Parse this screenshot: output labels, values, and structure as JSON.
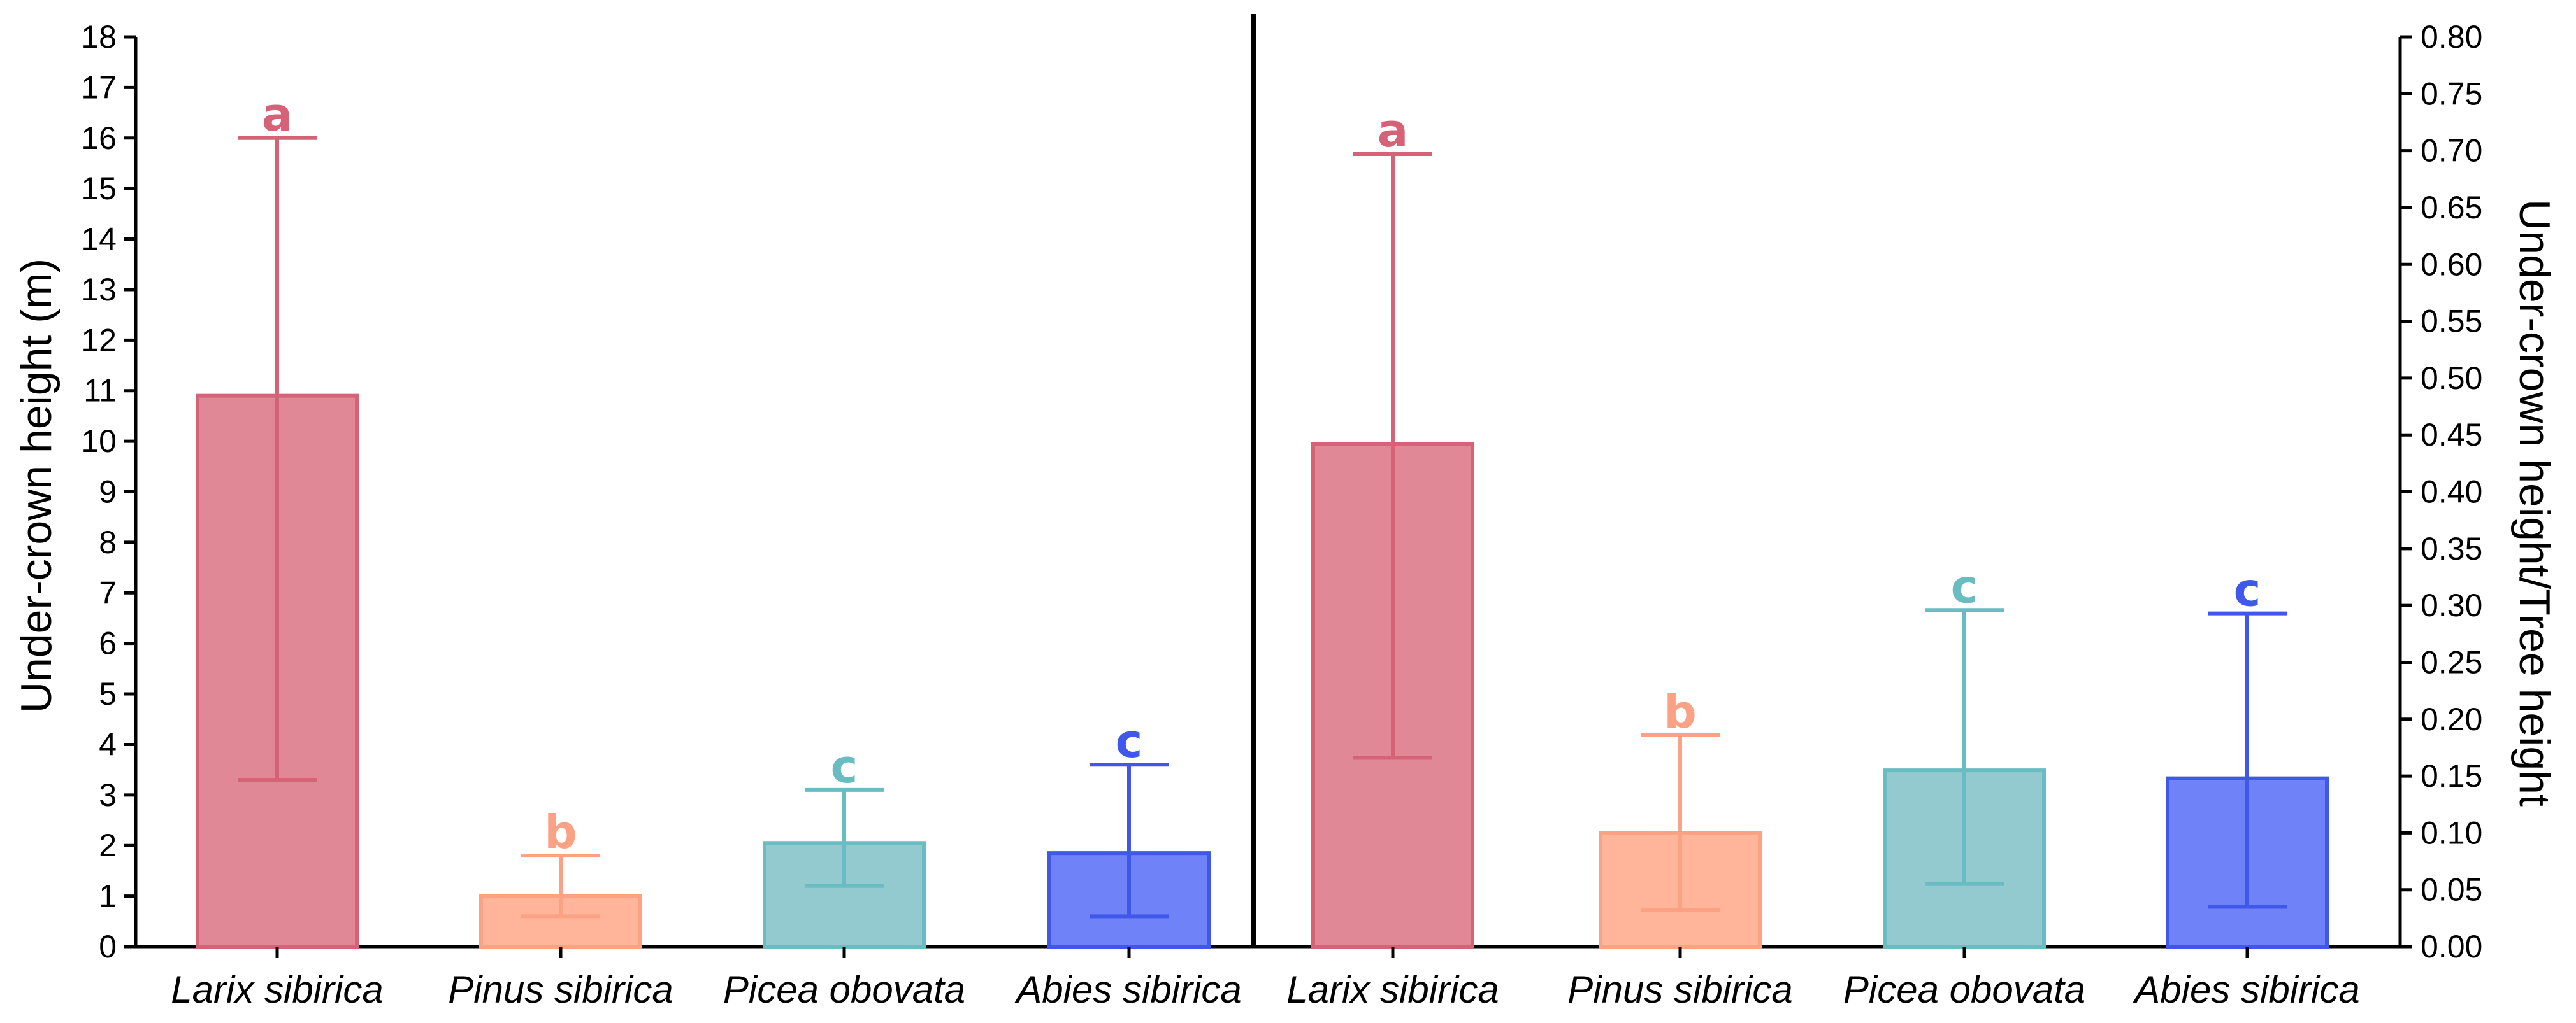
{
  "chart_data": [
    {
      "type": "bar",
      "panel": "left",
      "ylabel": "Under-crown height (m)",
      "ylim": [
        0,
        18
      ],
      "y_ticks": [
        "0",
        "1",
        "2",
        "3",
        "4",
        "5",
        "6",
        "7",
        "8",
        "9",
        "10",
        "11",
        "12",
        "13",
        "14",
        "15",
        "16",
        "17",
        "18"
      ],
      "categories": [
        "Larix sibirica",
        "Pinus sibirica",
        "Picea obovata",
        "Abies sibirica"
      ],
      "values": [
        10.9,
        1.0,
        2.05,
        1.85
      ],
      "error_low": [
        3.3,
        0.6,
        1.2,
        0.6
      ],
      "error_high": [
        16.0,
        1.8,
        3.1,
        3.6
      ],
      "significance": [
        "a",
        "b",
        "c",
        "c"
      ]
    },
    {
      "type": "bar",
      "panel": "right",
      "ylabel": "Under-crown height/Tree height",
      "ylim": [
        0,
        0.8
      ],
      "y_ticks": [
        "0.00",
        "0.05",
        "0.10",
        "0.15",
        "0.20",
        "0.25",
        "0.30",
        "0.35",
        "0.40",
        "0.45",
        "0.50",
        "0.55",
        "0.60",
        "0.65",
        "0.70",
        "0.75",
        "0.80"
      ],
      "categories": [
        "Larix sibirica",
        "Pinus sibirica",
        "Picea obovata",
        "Abies sibirica"
      ],
      "values": [
        0.442,
        0.1,
        0.155,
        0.148
      ],
      "error_low": [
        0.166,
        0.032,
        0.055,
        0.035
      ],
      "error_high": [
        0.697,
        0.186,
        0.296,
        0.293
      ],
      "significance": [
        "a",
        "b",
        "c",
        "c"
      ]
    }
  ],
  "series_colors": {
    "fill": [
      "#e08896",
      "#ffb59a",
      "#93cad0",
      "#6f82f7"
    ],
    "stroke": [
      "#d66278",
      "#fca284",
      "#69bcc2",
      "#3f58ea"
    ]
  }
}
